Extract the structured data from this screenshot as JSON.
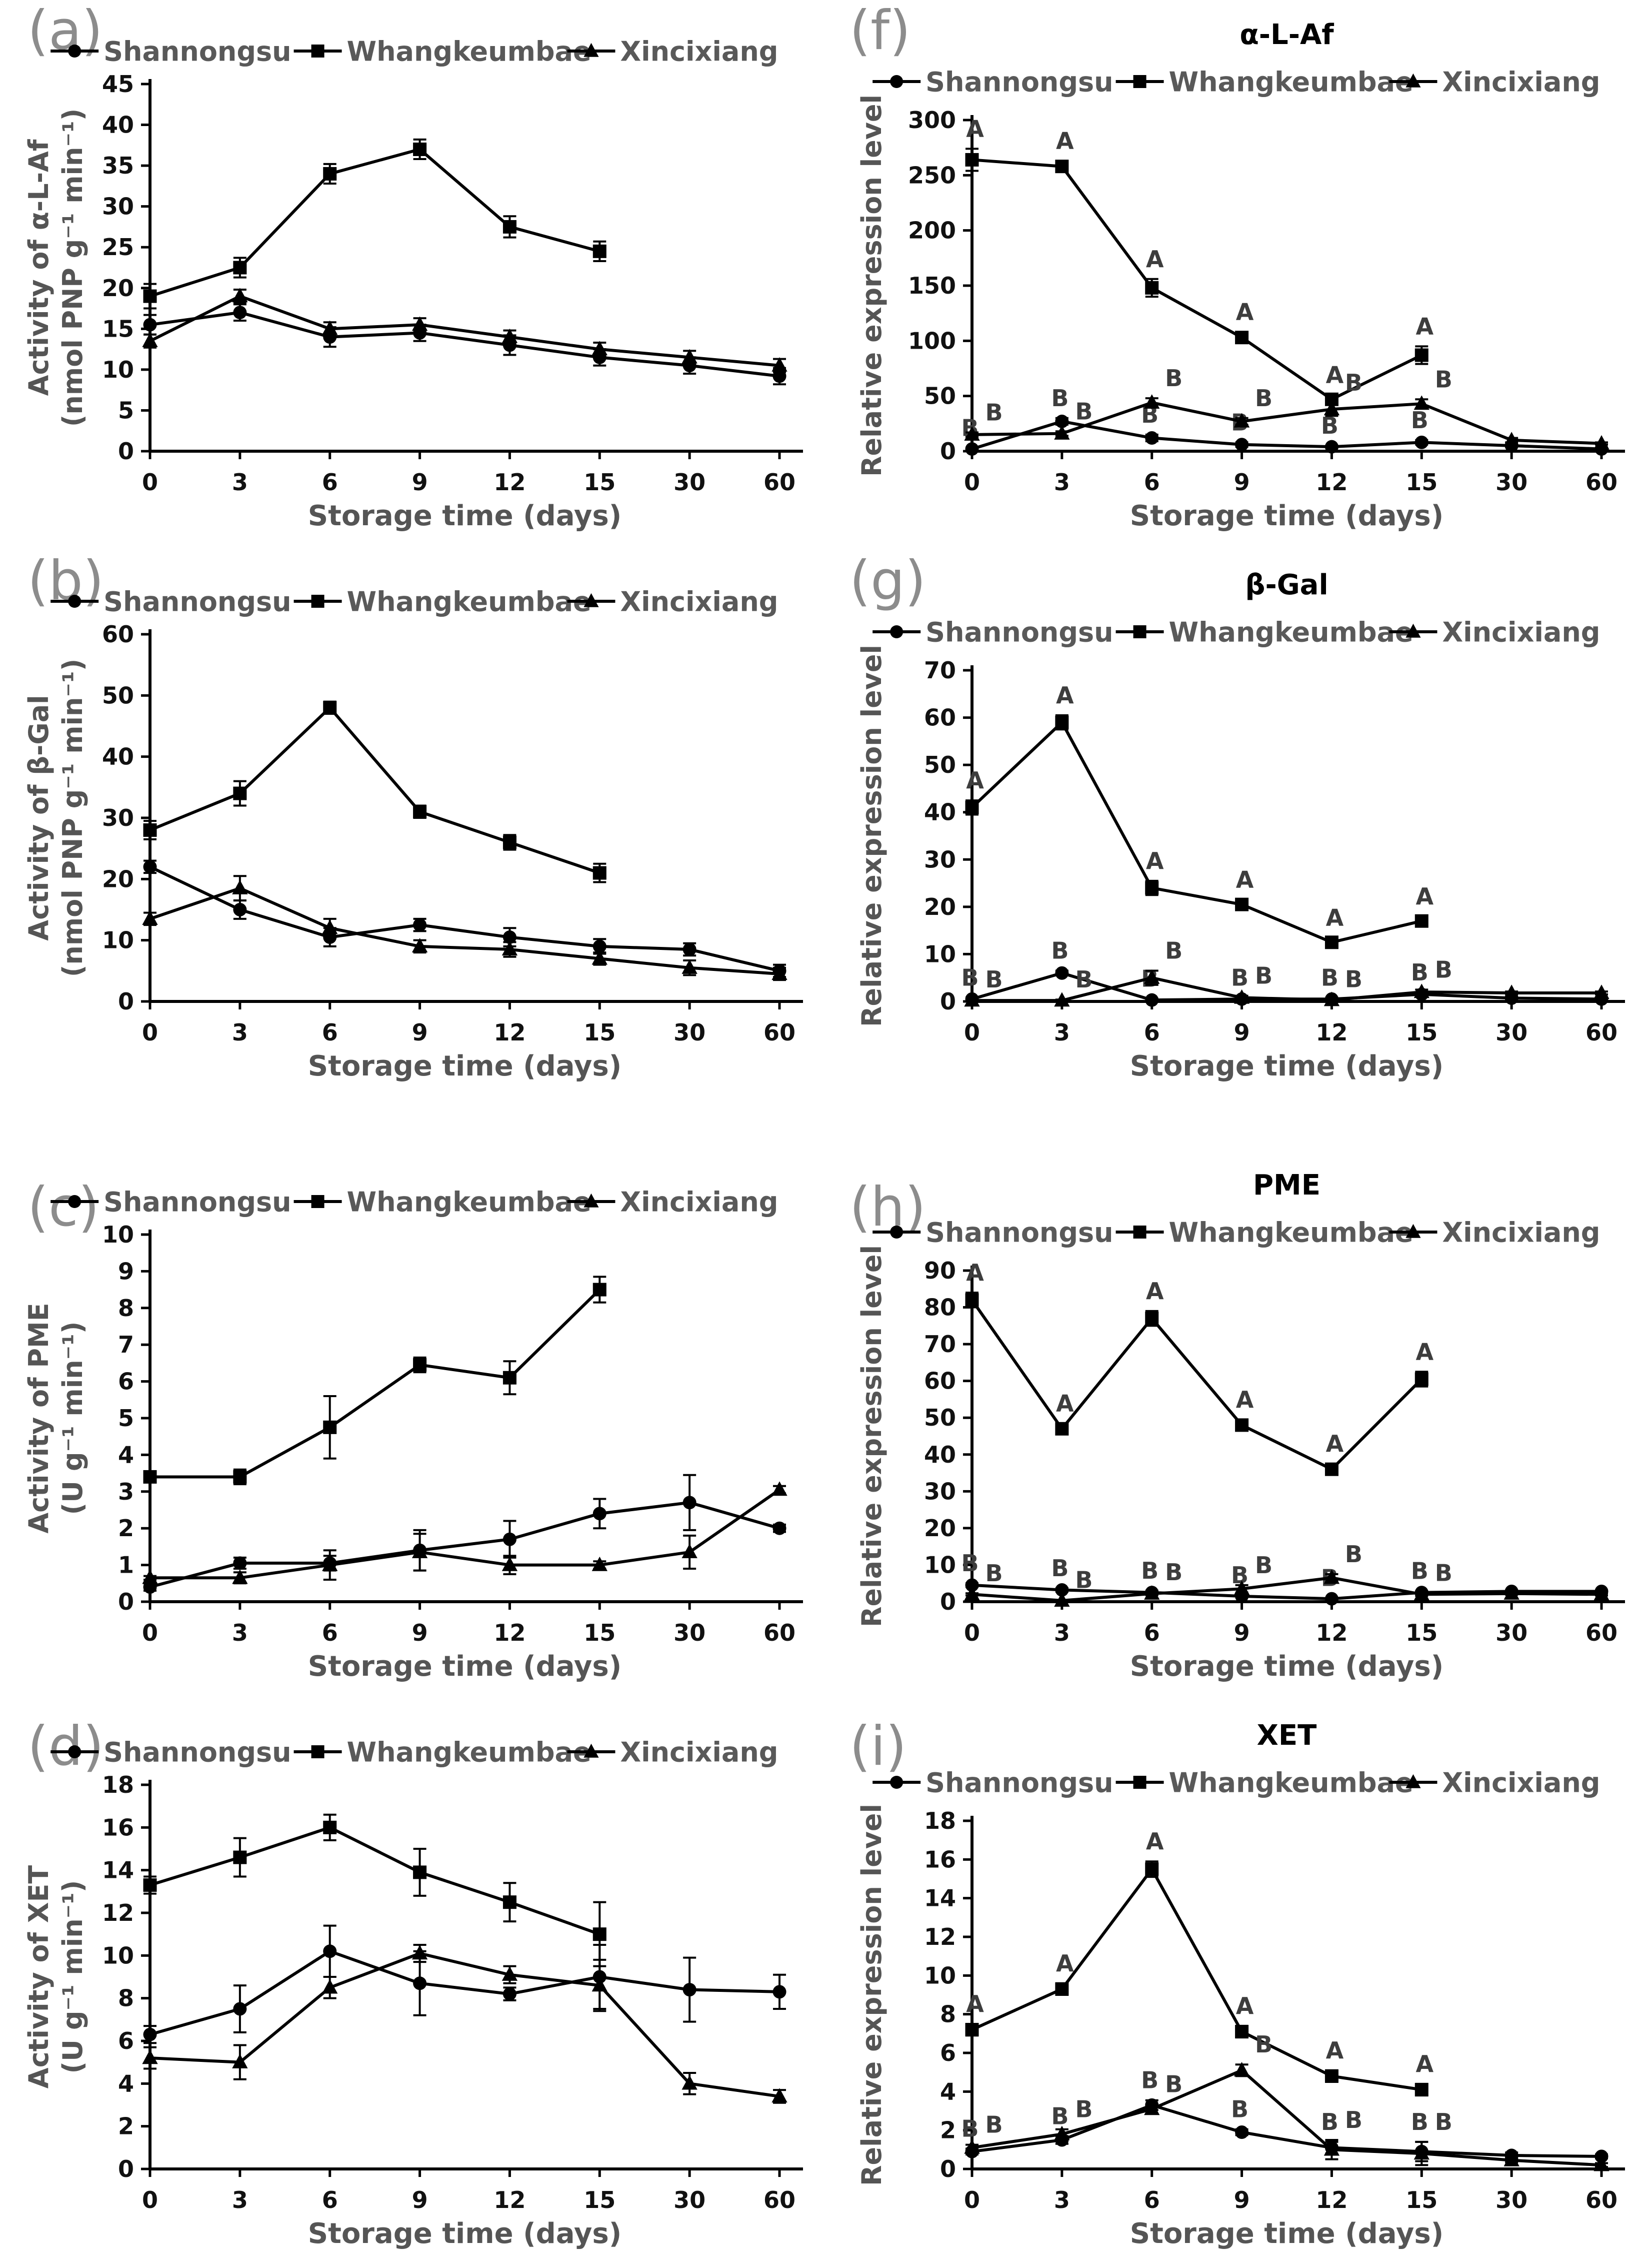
{
  "page": {
    "background": "#ffffff"
  },
  "legend": {
    "items": [
      {
        "label": "Shannongsu",
        "marker": "circle"
      },
      {
        "label": "Whangkeumbae",
        "marker": "square"
      },
      {
        "label": "Xincixiang",
        "marker": "triangle"
      }
    ],
    "line_color": "#000000",
    "text_color": "#595959"
  },
  "styles": {
    "tick_color": "#111111",
    "axis_color": "#000000",
    "axis_title_color": "#555555",
    "letter_color": "#3d3d3d",
    "title_color": "#000000"
  },
  "chart_data": [
    {
      "id": "a",
      "panel_label": "(a)",
      "type": "line",
      "title": null,
      "ylabel_lines": [
        "Activity of α-L-Af",
        "(nmol PNP g⁻¹ min⁻¹)"
      ],
      "xlabel": "Storage time (days)",
      "categories": [
        0,
        3,
        6,
        9,
        12,
        15,
        30,
        60
      ],
      "ylim": [
        0,
        45
      ],
      "ystep": 5,
      "grid": false,
      "legend_position": "top",
      "series": [
        {
          "name": "Shannongsu",
          "marker": "circle",
          "values": [
            15.5,
            17,
            14,
            14.5,
            13,
            11.5,
            10.5,
            9.2
          ],
          "errors": [
            1.2,
            1,
            1.2,
            1,
            1.2,
            1,
            1,
            1
          ]
        },
        {
          "name": "Whangkeumbae",
          "marker": "square",
          "values": [
            19,
            22.5,
            34,
            37,
            27.5,
            24.5,
            null,
            null
          ],
          "errors": [
            1.5,
            1.2,
            1.2,
            1.2,
            1.3,
            1.2,
            null,
            null
          ]
        },
        {
          "name": "Xincixiang",
          "marker": "triangle",
          "values": [
            13.5,
            19,
            15,
            15.5,
            14,
            12.5,
            11.5,
            10.5
          ],
          "errors": [
            0.8,
            0.8,
            0.8,
            0.8,
            0.8,
            0.8,
            0.8,
            0.8
          ]
        }
      ]
    },
    {
      "id": "f",
      "panel_label": "(f)",
      "type": "line",
      "title": "α-L-Af",
      "ylabel_lines": [
        "Relative expression level"
      ],
      "xlabel": "Storage time (days)",
      "categories": [
        0,
        3,
        6,
        9,
        12,
        15,
        30,
        60
      ],
      "ylim": [
        0,
        300
      ],
      "ystep": 50,
      "grid": false,
      "legend_position": "top",
      "series": [
        {
          "name": "Shannongsu",
          "marker": "circle",
          "values": [
            2,
            27,
            12,
            6,
            4,
            8,
            5,
            2
          ],
          "errors": [
            1,
            3,
            3,
            2,
            1,
            2,
            1,
            1
          ],
          "letters": [
            "B",
            "B",
            "B",
            "B",
            "B",
            "B",
            null,
            null
          ]
        },
        {
          "name": "Whangkeumbae",
          "marker": "square",
          "values": [
            264,
            258,
            148,
            103,
            47,
            87,
            null,
            null
          ],
          "errors": [
            10,
            5,
            8,
            5,
            4,
            8,
            null,
            null
          ],
          "letters": [
            "A",
            "A",
            "A",
            "A",
            "A",
            "A",
            null,
            null
          ]
        },
        {
          "name": "Xincixiang",
          "marker": "triangle",
          "values": [
            15,
            16,
            44,
            27,
            38,
            43,
            10,
            7
          ],
          "errors": [
            2,
            2,
            4,
            3,
            6,
            4,
            2,
            1
          ],
          "letters": [
            "B",
            "B",
            "B",
            "B",
            "B",
            "B",
            null,
            null
          ]
        }
      ]
    },
    {
      "id": "b",
      "panel_label": "(b)",
      "type": "line",
      "title": null,
      "ylabel_lines": [
        "Activity of β-Gal",
        "(nmol PNP g⁻¹ min⁻¹)"
      ],
      "xlabel": "Storage time (days)",
      "categories": [
        0,
        3,
        6,
        9,
        12,
        15,
        30,
        60
      ],
      "ylim": [
        0,
        60
      ],
      "ystep": 10,
      "grid": false,
      "legend_position": "top",
      "series": [
        {
          "name": "Shannongsu",
          "marker": "circle",
          "values": [
            22,
            15,
            10.5,
            12.5,
            10.5,
            9,
            8.5,
            5
          ],
          "errors": [
            1,
            1.5,
            1.5,
            1,
            1.5,
            1.2,
            1,
            1
          ]
        },
        {
          "name": "Whangkeumbae",
          "marker": "square",
          "values": [
            28,
            34,
            48,
            31,
            26,
            21,
            null,
            null
          ],
          "errors": [
            1.5,
            2,
            1,
            1,
            1.2,
            1.5,
            null,
            null
          ]
        },
        {
          "name": "Xincixiang",
          "marker": "triangle",
          "values": [
            13.5,
            18.5,
            12,
            9,
            8.5,
            7,
            5.5,
            4.5
          ],
          "errors": [
            1,
            2,
            1.5,
            1,
            1.2,
            1,
            1.2,
            1
          ]
        }
      ]
    },
    {
      "id": "g",
      "panel_label": "(g)",
      "type": "line",
      "title": "β-Gal",
      "ylabel_lines": [
        "Relative expression level"
      ],
      "xlabel": "Storage time (days)",
      "categories": [
        0,
        3,
        6,
        9,
        12,
        15,
        30,
        60
      ],
      "ylim": [
        0,
        70
      ],
      "ystep": 10,
      "grid": false,
      "legend_position": "top",
      "series": [
        {
          "name": "Shannongsu",
          "marker": "circle",
          "values": [
            0.5,
            6,
            0.3,
            0.5,
            0.5,
            1.5,
            0.7,
            0.5
          ],
          "errors": [
            0.3,
            0.5,
            0.3,
            0.3,
            0.3,
            0.4,
            0.3,
            0.3
          ],
          "letters": [
            "B",
            "B",
            "B",
            "B",
            "B",
            "B",
            null,
            null
          ]
        },
        {
          "name": "Whangkeumbae",
          "marker": "square",
          "values": [
            41,
            59,
            24,
            20.5,
            12.5,
            17,
            null,
            null
          ],
          "errors": [
            1.5,
            1.5,
            1.5,
            1,
            1,
            1,
            null,
            null
          ],
          "letters": [
            "A",
            "A",
            "A",
            "A",
            "A",
            "A",
            null,
            null
          ]
        },
        {
          "name": "Xincixiang",
          "marker": "triangle",
          "values": [
            0.2,
            0.2,
            5,
            0.8,
            0.3,
            2,
            1.8,
            1.8
          ],
          "errors": [
            0.2,
            0.2,
            1.5,
            0.4,
            0.2,
            0.5,
            0.3,
            0.3
          ],
          "letters": [
            "B",
            "B",
            "B",
            "B",
            "B",
            "B",
            null,
            null
          ]
        }
      ]
    },
    {
      "id": "c",
      "panel_label": "(c)",
      "type": "line",
      "title": null,
      "ylabel_lines": [
        "Activity of PME",
        "(U g⁻¹ min⁻¹)"
      ],
      "xlabel": "Storage time (days)",
      "categories": [
        0,
        3,
        6,
        9,
        12,
        15,
        30,
        60
      ],
      "ylim": [
        0,
        10
      ],
      "ystep": 1,
      "grid": false,
      "legend_position": "top",
      "series": [
        {
          "name": "Shannongsu",
          "marker": "circle",
          "values": [
            0.4,
            1.05,
            1.05,
            1.4,
            1.7,
            2.4,
            2.7,
            2.0
          ],
          "errors": [
            0.1,
            0.15,
            0.2,
            0.55,
            0.5,
            0.4,
            0.75,
            0.1
          ]
        },
        {
          "name": "Whangkeumbae",
          "marker": "square",
          "values": [
            3.4,
            3.4,
            4.75,
            6.45,
            6.1,
            8.5,
            null,
            null
          ],
          "errors": [
            0.1,
            0.2,
            0.85,
            0.2,
            0.45,
            0.35,
            null,
            null
          ]
        },
        {
          "name": "Xincixiang",
          "marker": "triangle",
          "values": [
            0.65,
            0.65,
            1.0,
            1.35,
            1.0,
            1.0,
            1.35,
            3.05
          ],
          "errors": [
            0.05,
            0.15,
            0.4,
            0.5,
            0.25,
            0.1,
            0.45,
            0.1
          ]
        }
      ]
    },
    {
      "id": "h",
      "panel_label": "(h)",
      "type": "line",
      "title": "PME",
      "ylabel_lines": [
        "Relative expression level"
      ],
      "xlabel": "Storage time (days)",
      "categories": [
        0,
        3,
        6,
        9,
        12,
        15,
        30,
        60
      ],
      "ylim": [
        0,
        90
      ],
      "ystep": 10,
      "grid": false,
      "legend_position": "top",
      "series": [
        {
          "name": "Shannongsu",
          "marker": "circle",
          "values": [
            4.5,
            3.2,
            2.5,
            1.5,
            0.8,
            2.5,
            2.8,
            2.8
          ],
          "errors": [
            0.5,
            0.5,
            0.5,
            0.3,
            0.2,
            0.4,
            0.3,
            0.3
          ],
          "letters": [
            "B",
            "B",
            "B",
            "B",
            "B",
            "B",
            null,
            null
          ]
        },
        {
          "name": "Whangkeumbae",
          "marker": "square",
          "values": [
            82,
            47,
            77,
            48,
            36,
            60.5,
            null,
            null
          ],
          "errors": [
            2,
            1.5,
            2,
            1.5,
            1.5,
            2,
            null,
            null
          ],
          "letters": [
            "A",
            "A",
            "A",
            "A",
            "A",
            "A",
            null,
            null
          ]
        },
        {
          "name": "Xincixiang",
          "marker": "triangle",
          "values": [
            2,
            0.3,
            2.2,
            3.5,
            6.5,
            2,
            2.2,
            2
          ],
          "errors": [
            0.3,
            0.2,
            0.4,
            1,
            1,
            0.4,
            0.3,
            0.3
          ],
          "letters": [
            "B",
            "B",
            "B",
            "B",
            "B",
            "B",
            null,
            null
          ]
        }
      ]
    },
    {
      "id": "d",
      "panel_label": "(d)",
      "type": "line",
      "title": null,
      "ylabel_lines": [
        "Activity of XET",
        "(U g⁻¹ min⁻¹)"
      ],
      "xlabel": "Storage time (days)",
      "categories": [
        0,
        3,
        6,
        9,
        12,
        15,
        30,
        60
      ],
      "ylim": [
        0,
        18
      ],
      "ystep": 2,
      "grid": false,
      "legend_position": "top",
      "series": [
        {
          "name": "Shannongsu",
          "marker": "circle",
          "values": [
            6.3,
            7.5,
            10.2,
            8.7,
            8.2,
            9.0,
            8.4,
            8.3
          ],
          "errors": [
            0.4,
            1.1,
            1.2,
            1.5,
            0.3,
            1.5,
            1.5,
            0.8
          ]
        },
        {
          "name": "Whangkeumbae",
          "marker": "square",
          "values": [
            13.3,
            14.6,
            16.0,
            13.9,
            12.5,
            11.0,
            null,
            null
          ],
          "errors": [
            0.4,
            0.9,
            0.6,
            1.1,
            0.9,
            1.5,
            null,
            null
          ]
        },
        {
          "name": "Xincixiang",
          "marker": "triangle",
          "values": [
            5.2,
            5.0,
            8.5,
            10.1,
            9.1,
            8.6,
            4.0,
            3.4
          ],
          "errors": [
            0.5,
            0.8,
            0.5,
            0.4,
            0.4,
            1.2,
            0.5,
            0.3
          ]
        }
      ]
    },
    {
      "id": "i",
      "panel_label": "(i)",
      "type": "line",
      "title": "XET",
      "ylabel_lines": [
        "Relative expression level"
      ],
      "xlabel": "Storage time (days)",
      "categories": [
        0,
        3,
        6,
        9,
        12,
        15,
        30,
        60
      ],
      "ylim": [
        0,
        18
      ],
      "ystep": 2,
      "grid": false,
      "legend_position": "top",
      "series": [
        {
          "name": "Shannongsu",
          "marker": "circle",
          "values": [
            0.9,
            1.5,
            3.3,
            1.9,
            1.1,
            0.9,
            0.7,
            0.65
          ],
          "errors": [
            0.15,
            0.2,
            0.25,
            0.15,
            0.3,
            0.5,
            0.15,
            0.1
          ],
          "letters": [
            "B",
            "B",
            "B",
            "B",
            "B",
            "B",
            null,
            null
          ]
        },
        {
          "name": "Whangkeumbae",
          "marker": "square",
          "values": [
            7.2,
            9.3,
            15.5,
            7.1,
            4.8,
            4.1,
            null,
            null
          ],
          "errors": [
            0.3,
            0.3,
            0.4,
            0.3,
            0.3,
            0.3,
            null,
            null
          ],
          "letters": [
            "A",
            "A",
            "A",
            "A",
            "A",
            "A",
            null,
            null
          ]
        },
        {
          "name": "Xincixiang",
          "marker": "triangle",
          "values": [
            1.1,
            1.8,
            3.1,
            5.1,
            1.0,
            0.8,
            0.45,
            0.2
          ],
          "errors": [
            0.15,
            0.25,
            0.25,
            0.3,
            0.5,
            0.6,
            0.1,
            0.1
          ],
          "letters": [
            "B",
            "B",
            "B",
            "B",
            "B",
            "B",
            null,
            null
          ]
        }
      ]
    }
  ]
}
